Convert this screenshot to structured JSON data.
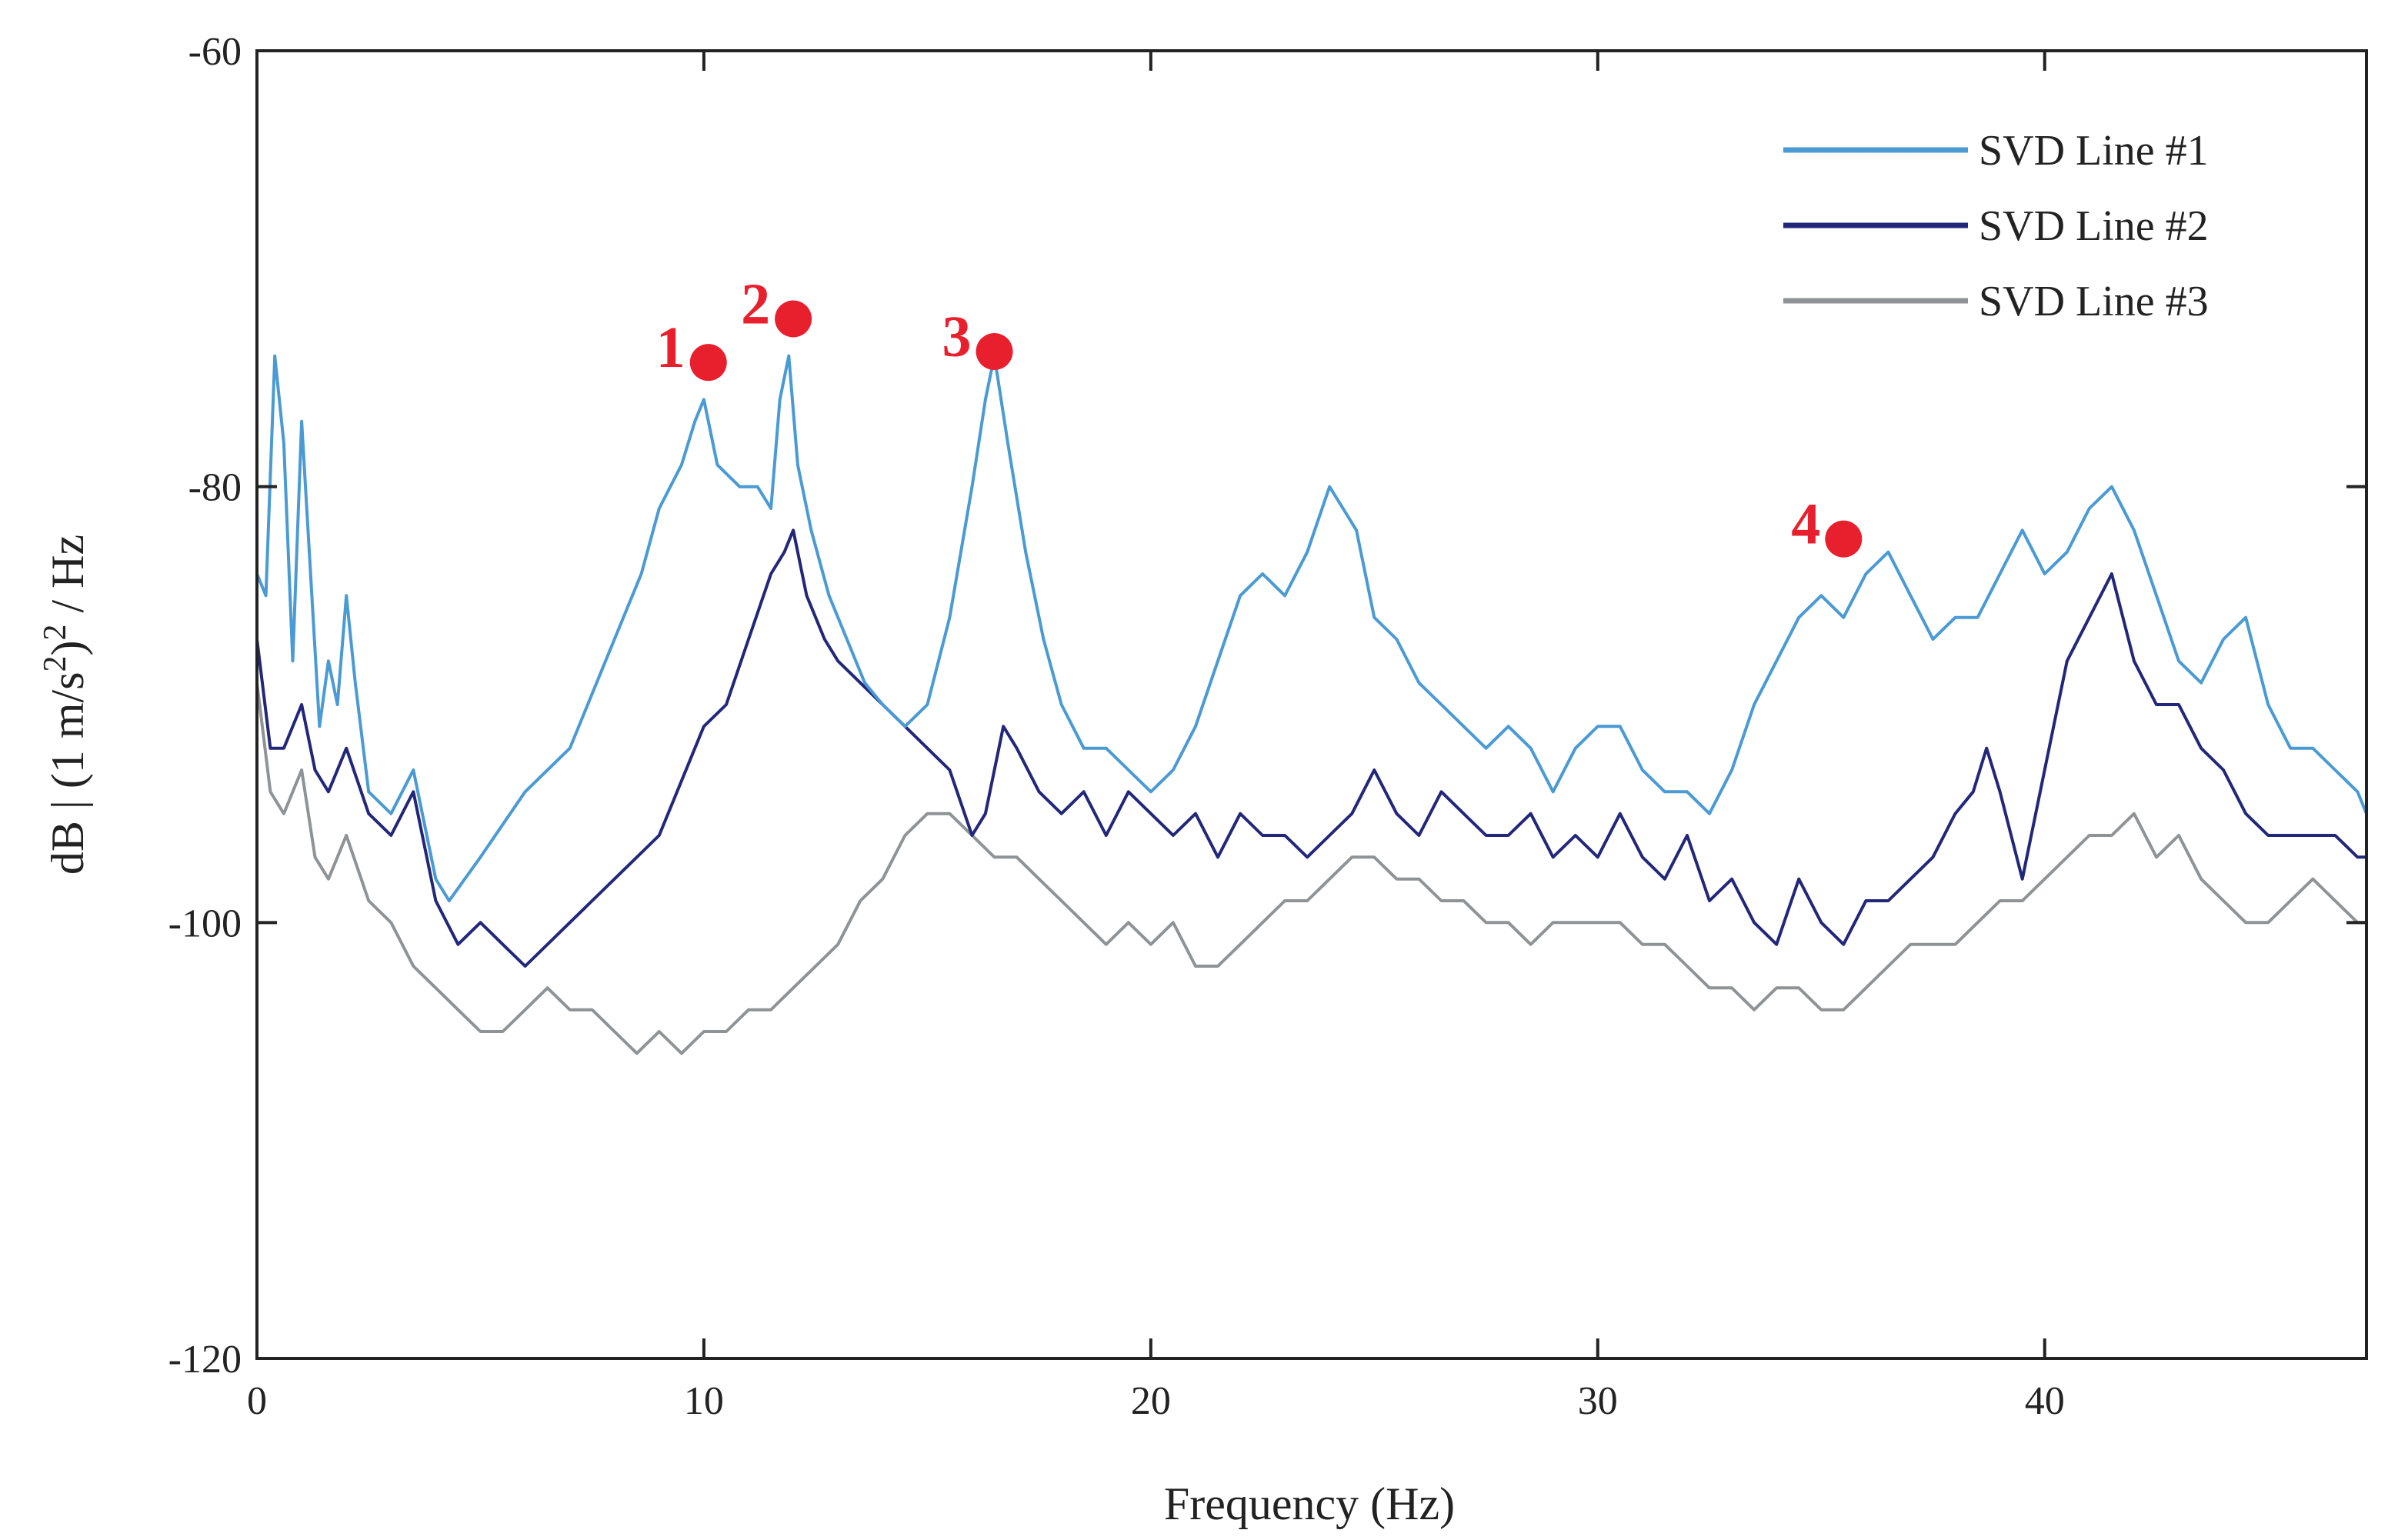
{
  "chart_data": {
    "type": "line",
    "title": "",
    "xlabel": "Frequency (Hz)",
    "ylabel_parts": {
      "prefix": "dB | (1 m/s",
      "sup1": "2",
      "middle": ")",
      "sup2": "2",
      "suffix": " / Hz"
    },
    "xlim": [
      0,
      47.2
    ],
    "ylim": [
      -120,
      -60
    ],
    "xticks": [
      0,
      10,
      20,
      30,
      40
    ],
    "yticks": [
      -120,
      -100,
      -80,
      -60
    ],
    "xtick_labels": [
      "0",
      "10",
      "20",
      "30",
      "40"
    ],
    "ytick_labels": [
      "-120",
      "-100",
      "-80",
      "-60"
    ],
    "grid": false,
    "legend_position": "top-right",
    "series": [
      {
        "name": "SVD Line #1",
        "color": "#4a9ad4",
        "x": [
          0,
          0.2,
          0.4,
          0.6,
          0.8,
          1.0,
          1.2,
          1.4,
          1.6,
          1.8,
          2.0,
          2.2,
          2.5,
          3.0,
          3.5,
          4.0,
          4.3,
          5.0,
          6.0,
          7.0,
          8.0,
          8.6,
          9.0,
          9.5,
          9.8,
          10.0,
          10.3,
          10.8,
          11.2,
          11.5,
          11.7,
          11.9,
          12.1,
          12.4,
          12.8,
          13.2,
          13.6,
          14.0,
          14.5,
          15.0,
          15.5,
          16.0,
          16.3,
          16.5,
          16.8,
          17.2,
          17.6,
          18.0,
          18.5,
          19.0,
          19.5,
          20.0,
          20.5,
          21.0,
          21.5,
          22.0,
          22.5,
          23.0,
          23.5,
          24.0,
          24.3,
          24.6,
          25.0,
          25.5,
          26.0,
          26.5,
          27.0,
          27.5,
          28.0,
          28.5,
          29.0,
          29.5,
          30.0,
          30.5,
          31.0,
          31.5,
          32.0,
          32.5,
          33.0,
          33.5,
          34.0,
          34.5,
          35.0,
          35.5,
          36.0,
          36.5,
          37.0,
          37.5,
          38.0,
          38.5,
          39.0,
          39.5,
          40.0,
          40.5,
          41.0,
          41.5,
          42.0,
          42.5,
          43.0,
          43.5,
          44.0,
          44.5,
          45.0,
          45.5,
          46.0,
          46.5,
          47.0,
          47.2
        ],
        "y": [
          -84,
          -85,
          -74,
          -78,
          -88,
          -77,
          -84,
          -91,
          -88,
          -90,
          -85,
          -89,
          -94,
          -95,
          -93,
          -98,
          -99,
          -97,
          -94,
          -92,
          -87,
          -84,
          -81,
          -79,
          -77,
          -76,
          -79,
          -80,
          -80,
          -81,
          -76,
          -74,
          -79,
          -82,
          -85,
          -87,
          -89,
          -90,
          -91,
          -90,
          -86,
          -80,
          -76,
          -74,
          -78,
          -83,
          -87,
          -90,
          -92,
          -92,
          -93,
          -94,
          -93,
          -91,
          -88,
          -85,
          -84,
          -85,
          -83,
          -80,
          -81,
          -82,
          -86,
          -87,
          -89,
          -90,
          -91,
          -92,
          -91,
          -92,
          -94,
          -92,
          -91,
          -91,
          -93,
          -94,
          -94,
          -95,
          -93,
          -90,
          -88,
          -86,
          -85,
          -86,
          -84,
          -83,
          -85,
          -87,
          -86,
          -86,
          -84,
          -82,
          -84,
          -83,
          -81,
          -80,
          -82,
          -85,
          -88,
          -89,
          -87,
          -86,
          -90,
          -92,
          -92,
          -93,
          -94,
          -95
        ]
      },
      {
        "name": "SVD Line #2",
        "color": "#22277a",
        "x": [
          0,
          0.3,
          0.6,
          1.0,
          1.3,
          1.6,
          2.0,
          2.5,
          3.0,
          3.5,
          4.0,
          4.5,
          5.0,
          5.5,
          6.0,
          7.0,
          8.0,
          9.0,
          10.0,
          10.5,
          11.0,
          11.5,
          11.8,
          12.0,
          12.3,
          12.7,
          13.0,
          13.5,
          14.0,
          14.5,
          15.0,
          15.5,
          16.0,
          16.3,
          16.7,
          17.0,
          17.5,
          18.0,
          18.5,
          19.0,
          19.5,
          20.0,
          20.5,
          21.0,
          21.5,
          22.0,
          22.5,
          23.0,
          23.5,
          24.0,
          24.5,
          25.0,
          25.5,
          26.0,
          26.5,
          27.0,
          27.5,
          28.0,
          28.5,
          29.0,
          29.5,
          30.0,
          30.5,
          31.0,
          31.5,
          32.0,
          32.5,
          33.0,
          33.5,
          34.0,
          34.5,
          35.0,
          35.5,
          36.0,
          36.5,
          37.0,
          37.5,
          38.0,
          38.4,
          38.7,
          39.0,
          39.5,
          40.0,
          40.5,
          41.0,
          41.5,
          42.0,
          42.5,
          43.0,
          43.5,
          44.0,
          44.5,
          45.0,
          45.5,
          46.0,
          46.5,
          47.0,
          47.2
        ],
        "y": [
          -87,
          -92,
          -92,
          -90,
          -93,
          -94,
          -92,
          -95,
          -96,
          -94,
          -99,
          -101,
          -100,
          -101,
          -102,
          -100,
          -98,
          -96,
          -91,
          -90,
          -87,
          -84,
          -83,
          -82,
          -85,
          -87,
          -88,
          -89,
          -90,
          -91,
          -92,
          -93,
          -96,
          -95,
          -91,
          -92,
          -94,
          -95,
          -94,
          -96,
          -94,
          -95,
          -96,
          -95,
          -97,
          -95,
          -96,
          -96,
          -97,
          -96,
          -95,
          -93,
          -95,
          -96,
          -94,
          -95,
          -96,
          -96,
          -95,
          -97,
          -96,
          -97,
          -95,
          -97,
          -98,
          -96,
          -99,
          -98,
          -100,
          -101,
          -98,
          -100,
          -101,
          -99,
          -99,
          -98,
          -97,
          -95,
          -94,
          -92,
          -94,
          -98,
          -93,
          -88,
          -86,
          -84,
          -88,
          -90,
          -90,
          -92,
          -93,
          -95,
          -96,
          -96,
          -96,
          -96,
          -97,
          -97
        ]
      },
      {
        "name": "SVD Line #3",
        "color": "#8f9396",
        "x": [
          0,
          0.3,
          0.6,
          1.0,
          1.3,
          1.6,
          2.0,
          2.5,
          3.0,
          3.5,
          4.0,
          4.5,
          5.0,
          5.5,
          6.0,
          6.5,
          7.0,
          7.5,
          8.0,
          8.5,
          9.0,
          9.5,
          10.0,
          10.5,
          11.0,
          11.5,
          12.0,
          12.5,
          13.0,
          13.5,
          14.0,
          14.5,
          15.0,
          15.5,
          16.0,
          16.5,
          17.0,
          17.5,
          18.0,
          18.5,
          19.0,
          19.5,
          20.0,
          20.5,
          21.0,
          21.5,
          22.0,
          22.5,
          23.0,
          23.5,
          24.0,
          24.5,
          25.0,
          25.5,
          26.0,
          26.5,
          27.0,
          27.5,
          28.0,
          28.5,
          29.0,
          29.5,
          30.0,
          30.5,
          31.0,
          31.5,
          32.0,
          32.5,
          33.0,
          33.5,
          34.0,
          34.5,
          35.0,
          35.5,
          36.0,
          36.5,
          37.0,
          37.5,
          38.0,
          38.5,
          39.0,
          39.5,
          40.0,
          40.5,
          41.0,
          41.5,
          42.0,
          42.5,
          43.0,
          43.5,
          44.0,
          44.5,
          45.0,
          45.5,
          46.0,
          46.5,
          47.0,
          47.2
        ],
        "y": [
          -89,
          -94,
          -95,
          -93,
          -97,
          -98,
          -96,
          -99,
          -100,
          -102,
          -103,
          -104,
          -105,
          -105,
          -104,
          -103,
          -104,
          -104,
          -105,
          -106,
          -105,
          -106,
          -105,
          -105,
          -104,
          -104,
          -103,
          -102,
          -101,
          -99,
          -98,
          -96,
          -95,
          -95,
          -96,
          -97,
          -97,
          -98,
          -99,
          -100,
          -101,
          -100,
          -101,
          -100,
          -102,
          -102,
          -101,
          -100,
          -99,
          -99,
          -98,
          -97,
          -97,
          -98,
          -98,
          -99,
          -99,
          -100,
          -100,
          -101,
          -100,
          -100,
          -100,
          -100,
          -101,
          -101,
          -102,
          -103,
          -103,
          -104,
          -103,
          -103,
          -104,
          -104,
          -103,
          -102,
          -101,
          -101,
          -101,
          -100,
          -99,
          -99,
          -98,
          -97,
          -96,
          -96,
          -95,
          -97,
          -96,
          -98,
          -99,
          -100,
          -100,
          -99,
          -98,
          -99,
          -100,
          -100
        ]
      }
    ],
    "annotations": [
      {
        "label": "1",
        "x": 10.1,
        "y": -74.3
      },
      {
        "label": "2",
        "x": 12.0,
        "y": -72.3
      },
      {
        "label": "3",
        "x": 16.5,
        "y": -73.8
      },
      {
        "label": "4",
        "x": 35.5,
        "y": -82.4
      }
    ],
    "annotation_color": "#e8202e"
  }
}
